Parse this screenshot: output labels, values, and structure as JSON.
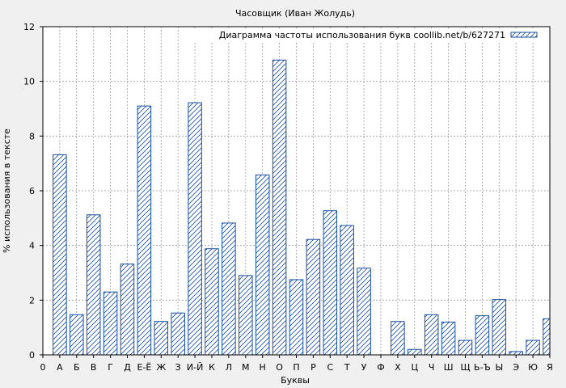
{
  "chart_data": {
    "type": "bar",
    "title": "Часовщик (Иван Жолудь)",
    "xlabel": "Буквы",
    "ylabel": "% использования в тексте",
    "ylim": [
      0,
      12
    ],
    "yticks": [
      "0",
      "2",
      "4",
      "6",
      "8",
      "10",
      "12"
    ],
    "grid": true,
    "legend_position": "top-right",
    "x_first_tick": "0",
    "categories": [
      "А",
      "Б",
      "В",
      "Г",
      "Д",
      "Е-Ё",
      "Ж",
      "З",
      "И-Й",
      "К",
      "Л",
      "М",
      "Н",
      "О",
      "П",
      "Р",
      "С",
      "Т",
      "У",
      "Ф",
      "Х",
      "Ц",
      "Ч",
      "Ш",
      "Щ",
      "Ь-Ъ",
      "Ы",
      "Э",
      "Ю",
      "Я"
    ],
    "series": [
      {
        "name": "Диаграмма частоты использования букв coollib.net/b/627271",
        "color": "#1a4fa0",
        "values": [
          7.32,
          1.47,
          5.12,
          2.3,
          3.32,
          9.1,
          1.22,
          1.53,
          9.22,
          3.88,
          4.82,
          2.9,
          6.58,
          10.78,
          2.75,
          4.22,
          5.27,
          4.73,
          3.17,
          0.0,
          1.22,
          0.2,
          1.47,
          1.2,
          0.53,
          1.43,
          2.02,
          0.12,
          0.53,
          1.32
        ]
      }
    ]
  }
}
